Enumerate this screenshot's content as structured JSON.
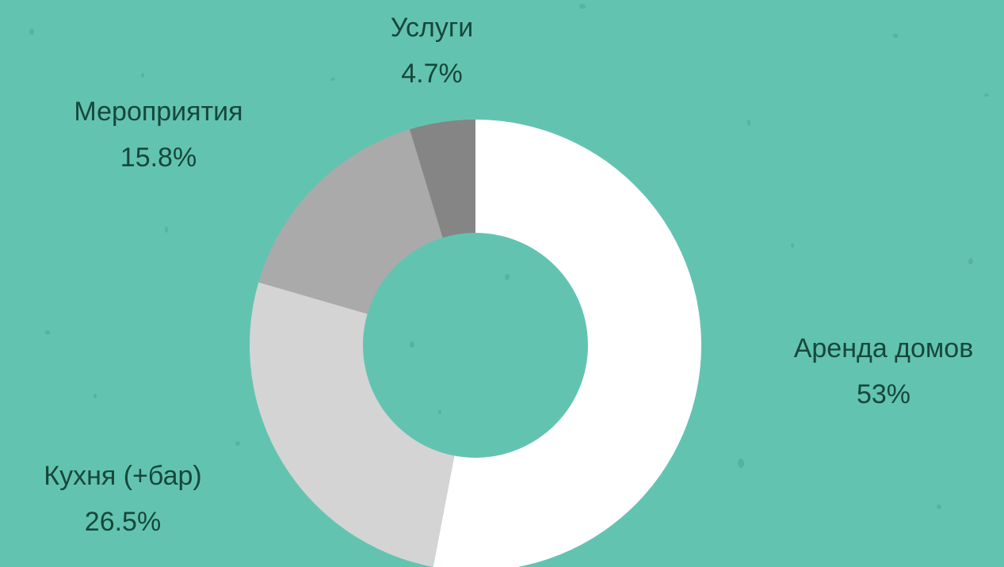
{
  "chart_data": {
    "type": "donut",
    "categories": [
      "Аренда домов",
      "Кухня (+бар)",
      "Мероприятия",
      "Услуги"
    ],
    "values": [
      53,
      26.5,
      15.8,
      4.7
    ],
    "value_labels": [
      "53%",
      "26.5%",
      "15.8%",
      "4.7%"
    ],
    "colors": [
      "#ffffff",
      "#d4d4d4",
      "#aaaaaa",
      "#858585"
    ]
  }
}
